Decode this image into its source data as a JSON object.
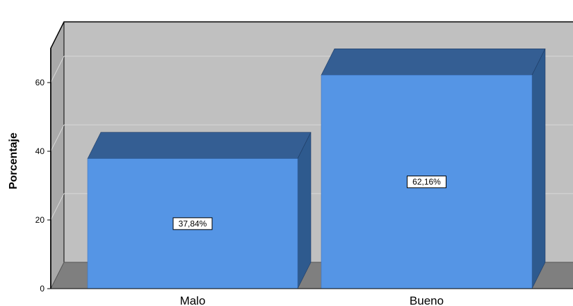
{
  "chart_data": {
    "type": "bar",
    "categories": [
      "Malo",
      "Bueno"
    ],
    "values": [
      37.84,
      62.16
    ],
    "data_labels": [
      "37,84%",
      "62,16%"
    ],
    "title": "",
    "xlabel": "",
    "ylabel": "Porcentaje",
    "ylim": [
      0,
      70
    ],
    "y_ticks": [
      0,
      20,
      40,
      60
    ],
    "y_tick_labels": [
      "0",
      "20",
      "40",
      "60"
    ],
    "grid": true,
    "style": "3d",
    "colors": {
      "bar_front": "#5595E5",
      "bar_top": "#345E93",
      "bar_side": "#2E5A8E",
      "back_wall": "#C0C0C0",
      "side_wall": "#A9A9A9",
      "floor": "#7F7F7F",
      "gridline": "#D8D8D8",
      "frame": "#000000"
    }
  }
}
